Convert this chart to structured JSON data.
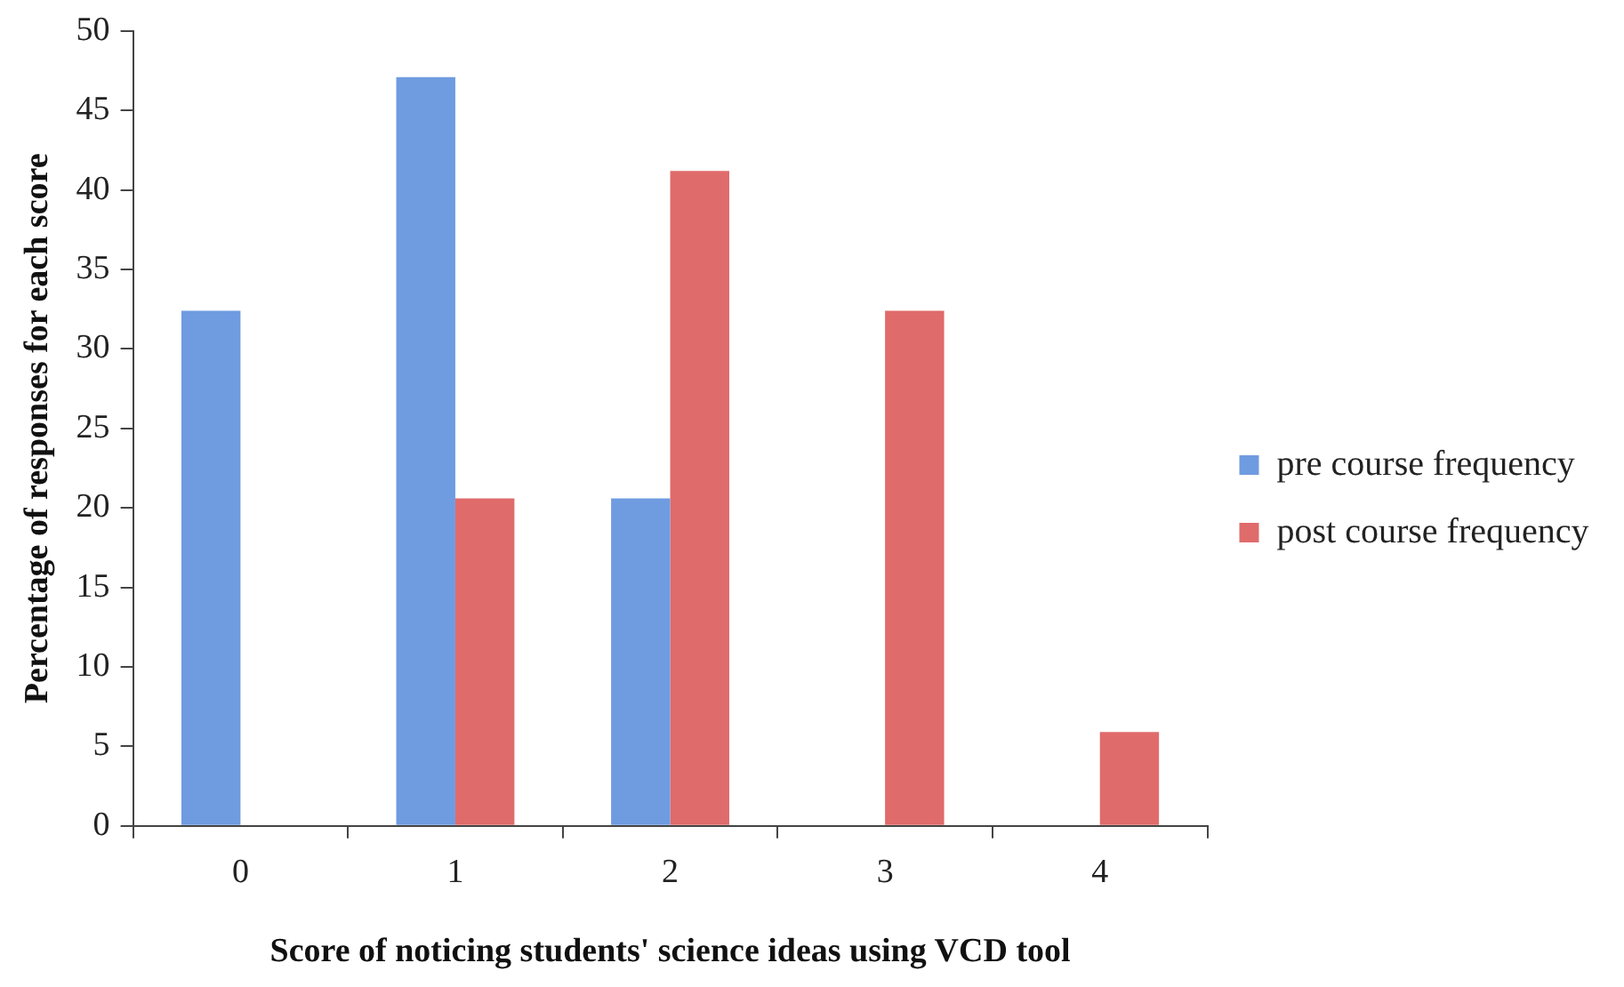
{
  "chart_data": {
    "type": "bar",
    "xlabel": "Score of noticing students' science ideas using VCD tool",
    "ylabel": "Percentage of responses for each score",
    "categories": [
      "0",
      "1",
      "2",
      "3",
      "4"
    ],
    "series": [
      {
        "name": "pre course frequency",
        "color": "#6f9be0",
        "values": [
          32.4,
          47.1,
          20.6,
          0,
          0
        ]
      },
      {
        "name": "post course frequency",
        "color": "#e06b6b",
        "values": [
          0,
          20.6,
          41.2,
          32.4,
          5.9
        ]
      }
    ],
    "ylim": [
      0,
      50
    ],
    "yticks": [
      0,
      5,
      10,
      15,
      20,
      25,
      30,
      35,
      40,
      45,
      50
    ],
    "grid": false,
    "legend": "right"
  }
}
